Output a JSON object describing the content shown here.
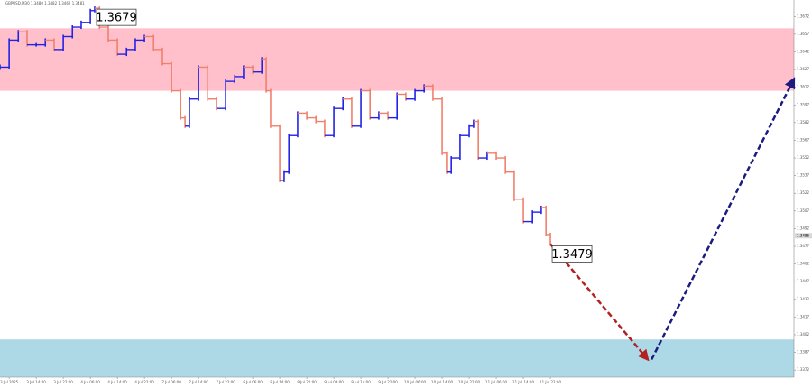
{
  "chart_data": {
    "type": "line",
    "header": "GBPUSD,M30  1.3480 1.3482 1.3462 1.3481",
    "x": [
      -2.7,
      0,
      2.7,
      5.3,
      8,
      10.7,
      13.3,
      16,
      18.7,
      21.3,
      24,
      25.3,
      26.7,
      29.3,
      32,
      34.7,
      37.3,
      40,
      42.7,
      45.3,
      48,
      50.7,
      52,
      53.3,
      56,
      58.7,
      61.3,
      64,
      66.7,
      69.3,
      72,
      74.7,
      76,
      77.3,
      80,
      81.3,
      82.7,
      85.3,
      88,
      90.7,
      93.3,
      96,
      98.7,
      101.3,
      104,
      106.7,
      109.3,
      112,
      114.7,
      117.3,
      120,
      122.7,
      125.3,
      128,
      129.3,
      130.7,
      133.3,
      136,
      137.3,
      138.7,
      141.3,
      144,
      146.7,
      149.3,
      152,
      154.7,
      157.3,
      158.7,
      160
    ],
    "values": [
      1.3629,
      1.3652,
      1.3659,
      1.3648,
      1.3648,
      1.3652,
      1.3644,
      1.3655,
      1.3663,
      1.3667,
      1.3677,
      1.3679,
      1.3663,
      1.3652,
      1.364,
      1.3644,
      1.3652,
      1.3655,
      1.3644,
      1.3632,
      1.3609,
      1.3586,
      1.3579,
      1.3602,
      1.3629,
      1.3602,
      1.3594,
      1.3617,
      1.3621,
      1.3629,
      1.3625,
      1.3636,
      1.3609,
      1.3579,
      1.3533,
      1.354,
      1.3571,
      1.359,
      1.3586,
      1.3583,
      1.3571,
      1.3594,
      1.3602,
      1.3579,
      1.3609,
      1.3586,
      1.359,
      1.3586,
      1.3606,
      1.3602,
      1.3609,
      1.3613,
      1.3602,
      1.3556,
      1.354,
      1.3552,
      1.3571,
      1.3579,
      1.3583,
      1.3552,
      1.3556,
      1.3552,
      1.354,
      1.3517,
      1.3498,
      1.3506,
      1.351,
      1.3487,
      1.3479
    ],
    "up_color": "#2323e6",
    "down_color": "#f0806c",
    "xlim": [
      -2.7,
      232
    ],
    "ylim": [
      1.3366,
      1.3686
    ],
    "yticks": [
      1.3672,
      1.3657,
      1.3642,
      1.3627,
      1.3612,
      1.3597,
      1.3582,
      1.3567,
      1.3552,
      1.3537,
      1.3522,
      1.3507,
      1.3492,
      1.3477,
      1.3462,
      1.3447,
      1.3432,
      1.3417,
      1.3402,
      1.3387,
      1.3372
    ],
    "xticks": [
      {
        "value": 0,
        "label": "3 Jul 2025"
      },
      {
        "value": 8,
        "label": "3 Jul 14:00"
      },
      {
        "value": 16,
        "label": "3 Jul 22:00"
      },
      {
        "value": 24,
        "label": "4 Jul 06:00"
      },
      {
        "value": 32,
        "label": "4 Jul 14:00"
      },
      {
        "value": 40,
        "label": "4 Jul 22:00"
      },
      {
        "value": 48,
        "label": "7 Jul 06:00"
      },
      {
        "value": 56,
        "label": "7 Jul 14:00"
      },
      {
        "value": 64,
        "label": "7 Jul 22:00"
      },
      {
        "value": 72,
        "label": "8 Jul 06:00"
      },
      {
        "value": 80,
        "label": "8 Jul 14:00"
      },
      {
        "value": 88,
        "label": "8 Jul 22:00"
      },
      {
        "value": 96,
        "label": "9 Jul 06:00"
      },
      {
        "value": 104,
        "label": "9 Jul 14:00"
      },
      {
        "value": 112,
        "label": "9 Jul 22:00"
      },
      {
        "value": 120,
        "label": "10 Jul 06:00"
      },
      {
        "value": 128,
        "label": "10 Jul 14:00"
      },
      {
        "value": 136,
        "label": "10 Jul 22:00"
      },
      {
        "value": 144,
        "label": "11 Jul 06:00"
      },
      {
        "value": 152,
        "label": "11 Jul 14:00"
      },
      {
        "value": 160,
        "label": "11 Jul 22:00"
      }
    ],
    "zones": [
      {
        "range": [
          1.3609,
          1.3662
        ],
        "color": "#ffc0cb"
      },
      {
        "range": [
          1.3366,
          1.3398
        ],
        "color": "#add8e6"
      }
    ],
    "annotations": [
      {
        "x": 25.3,
        "value": 1.3679
      },
      {
        "x": 160,
        "value": 1.3479
      }
    ],
    "last_price": 1.3486,
    "forecast": [
      {
        "x": [
          160,
          188.8
        ],
        "values": [
          1.3479,
          1.3381
        ],
        "color": "#b22222"
      },
      {
        "x": [
          189.9,
          232
        ],
        "values": [
          1.3381,
          1.3619
        ],
        "color": "#1c1c80"
      }
    ]
  }
}
